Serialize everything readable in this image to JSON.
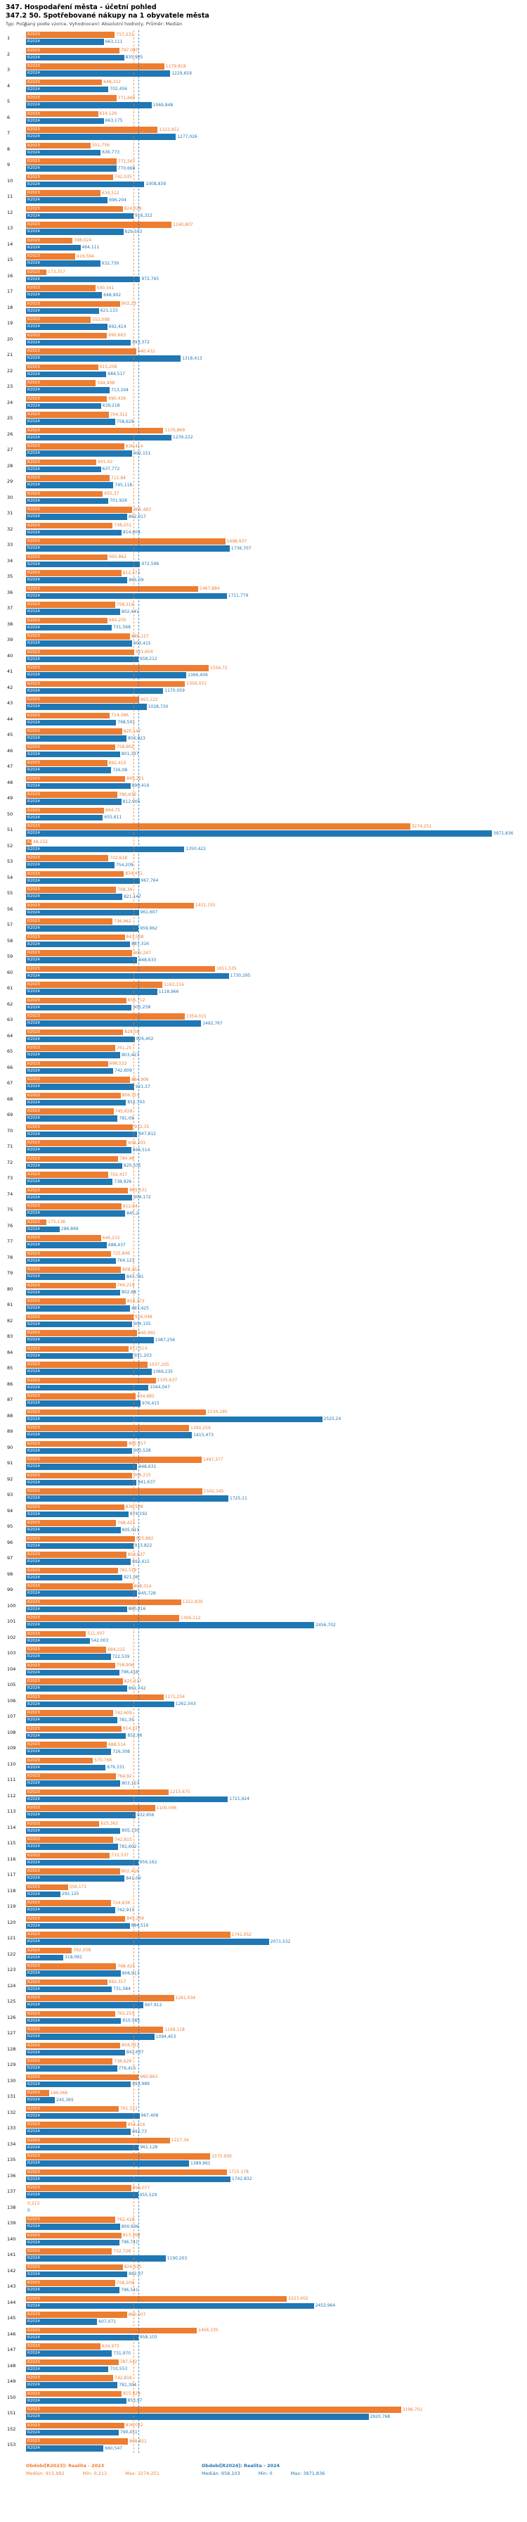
{
  "header": {
    "title": "347. Hospodaření města - účetní pohled",
    "subtitle": "347.2 50. Spotřebované nákupy na 1 obyvatele města",
    "meta": "Typ: Počítaný podle vzorce, Vyhodnocení: Absolutní hodnoty, Průměr: Medián"
  },
  "axis": {
    "zero": "0"
  },
  "legend": {
    "r2023": {
      "period": "Období[R2023]: Realita - 2023",
      "median": "Medián: 915,992",
      "min": "Min: 0,213",
      "max": "Max: 3274,251"
    },
    "r2024": {
      "period": "Období[R2024]: Realita - 2024",
      "median": "Medián: 958,103",
      "min": "Min: 0",
      "max": "Max: 3971,836"
    }
  },
  "chart_data": {
    "type": "bar",
    "orientation": "horizontal",
    "series_labels": [
      "R2023",
      "R2024"
    ],
    "colors": {
      "r2023": "#ED7D31",
      "r2024": "#1F77B4"
    },
    "xlim": [
      0,
      4000
    ],
    "median_r2023": 915.992,
    "median_r2024": 958.103,
    "min_r2023": 0.213,
    "min_r2024": 0,
    "max_r2023": 3274.251,
    "max_r2024": 3971.836,
    "rows": [
      {
        "i": "1",
        "r2023": "757,231",
        "r2024": "663,111"
      },
      {
        "i": "2",
        "r2023": "797,040",
        "r2024": "835,905"
      },
      {
        "i": "3",
        "r2023": "1179,818",
        "r2024": "1229,659"
      },
      {
        "i": "4",
        "r2023": "648,312",
        "r2024": "702,456"
      },
      {
        "i": "5",
        "r2023": "771,665",
        "r2024": "1069,848"
      },
      {
        "i": "6",
        "r2023": "614,126",
        "r2024": "663,175"
      },
      {
        "i": "7",
        "r2023": "1122,951",
        "r2024": "1277,026"
      },
      {
        "i": "8",
        "r2023": "551,756",
        "r2024": "636,773"
      },
      {
        "i": "9",
        "r2023": "771,567",
        "r2024": "770,668"
      },
      {
        "i": "10",
        "r2023": "742,035",
        "r2024": "1008,839"
      },
      {
        "i": "11",
        "r2023": "634,512",
        "r2024": "696,204"
      },
      {
        "i": "12",
        "r2023": "824,028",
        "r2024": "916,322"
      },
      {
        "i": "13",
        "r2023": "1240,807",
        "r2024": "829,503"
      },
      {
        "i": "14",
        "r2023": "398,024",
        "r2024": "464,111"
      },
      {
        "i": "15",
        "r2023": "419,594",
        "r2024": "632,730"
      },
      {
        "i": "16",
        "r2023": "173,757",
        "r2024": "972,765"
      },
      {
        "i": "17",
        "r2023": "590,341",
        "r2024": "648,902"
      },
      {
        "i": "18",
        "r2023": "802,23",
        "r2024": "621,133"
      },
      {
        "i": "19",
        "r2023": "552,098",
        "r2024": "692,414"
      },
      {
        "i": "20",
        "r2023": "690,663",
        "r2024": "893,372"
      },
      {
        "i": "21",
        "r2023": "940,432",
        "r2024": "1318,413"
      },
      {
        "i": "22",
        "r2023": "615,208",
        "r2024": "684,517"
      },
      {
        "i": "23",
        "r2023": "594,908",
        "r2024": "713,194"
      },
      {
        "i": "24",
        "r2023": "690,439",
        "r2024": "639,218"
      },
      {
        "i": "25",
        "r2023": "704,312",
        "r2024": "758,629"
      },
      {
        "i": "26",
        "r2023": "1170,869",
        "r2024": "1239,222"
      },
      {
        "i": "27",
        "r2023": "836,414",
        "r2024": "902,151"
      },
      {
        "i": "28",
        "r2023": "601,02",
        "r2024": "637,772"
      },
      {
        "i": "29",
        "r2023": "712,84",
        "r2024": "745,118"
      },
      {
        "i": "30",
        "r2023": "655,37",
        "r2024": "701,926"
      },
      {
        "i": "31",
        "r2023": "905,483",
        "r2024": "862,017"
      },
      {
        "i": "32",
        "r2023": "738,251",
        "r2024": "814,604"
      },
      {
        "i": "33",
        "r2023": "1698,937",
        "r2024": "1736,707"
      },
      {
        "i": "34",
        "r2023": "695,862",
        "r2024": "972,598"
      },
      {
        "i": "35",
        "r2023": "812,473",
        "r2024": "865,09"
      },
      {
        "i": "36",
        "r2023": "1467,884",
        "r2024": "1711,779"
      },
      {
        "i": "37",
        "r2023": "758,316",
        "r2024": "802,441"
      },
      {
        "i": "38",
        "r2023": "694,205",
        "r2024": "731,568"
      },
      {
        "i": "39",
        "r2023": "886,127",
        "r2024": "903,415"
      },
      {
        "i": "40",
        "r2023": "921,604",
        "r2024": "958,212"
      },
      {
        "i": "41",
        "r2023": "1556,72",
        "r2024": "1366,409"
      },
      {
        "i": "42",
        "r2023": "1356,031",
        "r2024": "1170,059"
      },
      {
        "i": "43",
        "r2023": "963,122",
        "r2024": "1028,730"
      },
      {
        "i": "44",
        "r2023": "714,386",
        "r2024": "768,501"
      },
      {
        "i": "45",
        "r2023": "820,147",
        "r2024": "856,923"
      },
      {
        "i": "46",
        "r2023": "758,902",
        "r2024": "801,337"
      },
      {
        "i": "47",
        "r2023": "692,415",
        "r2024": "726,08"
      },
      {
        "i": "48",
        "r2023": "845,221",
        "r2024": "890,416"
      },
      {
        "i": "49",
        "r2023": "780,633",
        "r2024": "812,905"
      },
      {
        "i": "50",
        "r2023": "664,75",
        "r2024": "655,611"
      },
      {
        "i": "51",
        "r2023": "3274,251",
        "r2024": "3971,836"
      },
      {
        "i": "52",
        "r2023": "48,152",
        "r2024": "1350,422"
      },
      {
        "i": "53",
        "r2023": "702,618",
        "r2024": "754,209"
      },
      {
        "i": "54",
        "r2023": "834,451",
        "r2024": "967,764"
      },
      {
        "i": "55",
        "r2023": "768,39",
        "r2024": "821,147"
      },
      {
        "i": "56",
        "r2023": "1431,155",
        "r2024": "961,607"
      },
      {
        "i": "57",
        "r2023": "736,962",
        "r2024": "959,962"
      },
      {
        "i": "58",
        "r2023": "841,508",
        "r2024": "887,316"
      },
      {
        "i": "59",
        "r2023": "905,247",
        "r2024": "948,633"
      },
      {
        "i": "60",
        "r2023": "1611,535",
        "r2024": "1730,295"
      },
      {
        "i": "61",
        "r2023": "1163,116",
        "r2024": "1118,966"
      },
      {
        "i": "62",
        "r2023": "854,712",
        "r2024": "901,258"
      },
      {
        "i": "63",
        "r2023": "1354,015",
        "r2024": "1492,767"
      },
      {
        "i": "64",
        "r2023": "828,38",
        "r2024": "926,402"
      },
      {
        "i": "65",
        "r2023": "761,25",
        "r2024": "803,417"
      },
      {
        "i": "66",
        "r2023": "698,532",
        "r2024": "742,609"
      },
      {
        "i": "67",
        "r2023": "884,906",
        "r2024": "921,37"
      },
      {
        "i": "68",
        "r2023": "806,114",
        "r2024": "852,743"
      },
      {
        "i": "69",
        "r2023": "745,628",
        "r2024": "781,09"
      },
      {
        "i": "70",
        "r2023": "912,35",
        "r2024": "947,812"
      },
      {
        "i": "71",
        "r2023": "858,203",
        "r2024": "896,514"
      },
      {
        "i": "72",
        "r2023": "784,96",
        "r2024": "820,335"
      },
      {
        "i": "73",
        "r2023": "702,417",
        "r2024": "738,926"
      },
      {
        "i": "74",
        "r2023": "869,531",
        "r2024": "904,172"
      },
      {
        "i": "75",
        "r2023": "812,64",
        "r2024": "845,2"
      },
      {
        "i": "76",
        "r2023": "175,136",
        "r2024": "286,869"
      },
      {
        "i": "77",
        "r2023": "640,215",
        "r2024": "688,437"
      },
      {
        "i": "78",
        "r2023": "725,806",
        "r2024": "764,123"
      },
      {
        "i": "79",
        "r2023": "808,452",
        "r2024": "843,791"
      },
      {
        "i": "80",
        "r2023": "764,219",
        "r2024": "802,68"
      },
      {
        "i": "81",
        "r2023": "850,173",
        "r2024": "887,425"
      },
      {
        "i": "82",
        "r2023": "916,048",
        "r2024": "904,155"
      },
      {
        "i": "83",
        "r2023": "945,991",
        "r2024": "1087,256"
      },
      {
        "i": "84",
        "r2023": "872,514",
        "r2024": "911,203"
      },
      {
        "i": "85",
        "r2023": "1037,205",
        "r2024": "1069,235"
      },
      {
        "i": "86",
        "r2023": "1105,637",
        "r2024": "1044,047"
      },
      {
        "i": "87",
        "r2023": "934,682",
        "r2024": "976,415"
      },
      {
        "i": "88",
        "r2023": "1534,185",
        "r2024": "2525,24"
      },
      {
        "i": "89",
        "r2023": "1390,259",
        "r2024": "1415,473"
      },
      {
        "i": "90",
        "r2023": "862,417",
        "r2024": "903,528"
      },
      {
        "i": "91",
        "r2023": "1497,377",
        "r2024": "948,631"
      },
      {
        "i": "92",
        "r2023": "904,215",
        "r2024": "941,637"
      },
      {
        "i": "93",
        "r2023": "1502,345",
        "r2024": "1725,11"
      },
      {
        "i": "94",
        "r2023": "836,508",
        "r2024": "874,192"
      },
      {
        "i": "95",
        "r2023": "768,423",
        "r2024": "805,911"
      },
      {
        "i": "96",
        "r2023": "925,892",
        "r2024": "913,822"
      },
      {
        "i": "97",
        "r2023": "854,637",
        "r2024": "892,415"
      },
      {
        "i": "98",
        "r2023": "782,519",
        "r2024": "821,06"
      },
      {
        "i": "99",
        "r2023": "908,314",
        "r2024": "945,728"
      },
      {
        "i": "100",
        "r2023": "1322,839",
        "r2024": "860,216"
      },
      {
        "i": "101",
        "r2023": "1306,112",
        "r2024": "2456,702"
      },
      {
        "i": "102",
        "r2023": "511,007",
        "r2024": "542,003"
      },
      {
        "i": "103",
        "r2023": "684,215",
        "r2024": "722,539"
      },
      {
        "i": "104",
        "r2023": "758,906",
        "r2024": "796,418"
      },
      {
        "i": "105",
        "r2023": "825,317",
        "r2024": "861,742"
      },
      {
        "i": "106",
        "r2023": "1171,254",
        "r2024": "1262,543"
      },
      {
        "i": "107",
        "r2023": "742,609",
        "r2024": "781,35"
      },
      {
        "i": "108",
        "r2023": "814,227",
        "r2024": "852,96"
      },
      {
        "i": "109",
        "r2023": "688,514",
        "r2024": "726,308"
      },
      {
        "i": "110",
        "r2023": "570,768",
        "r2024": "679,331"
      },
      {
        "i": "111",
        "r2023": "764,92",
        "r2024": "803,157"
      },
      {
        "i": "112",
        "r2023": "1215,675",
        "r2024": "1721,924"
      },
      {
        "i": "113",
        "r2023": "1100,096",
        "r2024": "932,956"
      },
      {
        "i": "114",
        "r2023": "625,362",
        "r2024": "805,130"
      },
      {
        "i": "115",
        "r2023": "742,815",
        "r2024": "781,602"
      },
      {
        "i": "116",
        "r2023": "715,537",
        "r2024": "956,162"
      },
      {
        "i": "117",
        "r2023": "802,416",
        "r2024": "841,09"
      },
      {
        "i": "118",
        "r2023": "356,171",
        "r2024": "292,125"
      },
      {
        "i": "119",
        "r2023": "724,638",
        "r2024": "762,915"
      },
      {
        "i": "120",
        "r2023": "845,209",
        "r2024": "884,516"
      },
      {
        "i": "121",
        "r2023": "1741,052",
        "r2024": "2071,532"
      },
      {
        "i": "122",
        "r2023": "392,058",
        "r2024": "318,091"
      },
      {
        "i": "123",
        "r2023": "768,425",
        "r2024": "806,913"
      },
      {
        "i": "124",
        "r2023": "692,317",
        "r2024": "731,584"
      },
      {
        "i": "125",
        "r2023": "1261,034",
        "r2024": "997,912"
      },
      {
        "i": "126",
        "r2023": "762,253",
        "r2024": "810,585"
      },
      {
        "i": "127",
        "r2023": "1169,118",
        "r2024": "1094,453"
      },
      {
        "i": "128",
        "r2023": "804,512",
        "r2024": "842,637"
      },
      {
        "i": "129",
        "r2023": "738,629",
        "r2024": "776,415"
      },
      {
        "i": "130",
        "r2023": "960,863",
        "r2024": "893,989"
      },
      {
        "i": "131",
        "r2023": "196,066",
        "r2024": "245,365"
      },
      {
        "i": "132",
        "r2023": "791,511",
        "r2024": "967,408"
      },
      {
        "i": "133",
        "r2023": "854,216",
        "r2024": "892,73"
      },
      {
        "i": "134",
        "r2023": "1227,34",
        "r2024": "961,128"
      },
      {
        "i": "135",
        "r2023": "1570,936",
        "r2024": "1389,961"
      },
      {
        "i": "136",
        "r2023": "1715,178",
        "r2024": "1742,832"
      },
      {
        "i": "137",
        "r2023": "896,077",
        "r2024": "955,529"
      },
      {
        "i": "138",
        "r2023": "0,213",
        "r2024": "0"
      },
      {
        "i": "139",
        "r2023": "762,418",
        "r2024": "800,936"
      },
      {
        "i": "140",
        "r2023": "813,368",
        "r2024": "796,741"
      },
      {
        "i": "141",
        "r2023": "732,728",
        "r2024": "1190,203"
      },
      {
        "i": "142",
        "r2023": "824,615",
        "r2024": "862,37"
      },
      {
        "i": "143",
        "r2023": "758,209",
        "r2024": "796,541"
      },
      {
        "i": "144",
        "r2023": "2223,402",
        "r2024": "2453,964"
      },
      {
        "i": "145",
        "r2023": "860,107",
        "r2024": "607,071"
      },
      {
        "i": "146",
        "r2023": "1456,335",
        "r2024": "958,103"
      },
      {
        "i": "147",
        "r2023": "634,975",
        "r2024": "731,970"
      },
      {
        "i": "148",
        "r2023": "787,542",
        "r2024": "703,553"
      },
      {
        "i": "149",
        "r2023": "742,816",
        "r2024": "781,304"
      },
      {
        "i": "150",
        "r2023": "815,629",
        "r2024": "853,97"
      },
      {
        "i": "151",
        "r2023": "3196,701",
        "r2024": "2920,768"
      },
      {
        "i": "152",
        "r2023": "836,022",
        "r2024": "790,451"
      },
      {
        "i": "153",
        "r2023": "868,821",
        "r2024": "660,547"
      }
    ]
  }
}
